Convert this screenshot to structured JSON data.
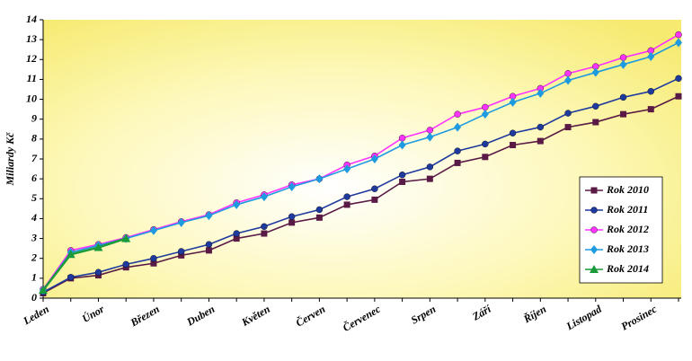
{
  "chart_data": {
    "type": "line",
    "y_label": "Miliardy Kč",
    "categories": [
      "Leden",
      null,
      "Únor",
      null,
      "Březen",
      null,
      "Duben",
      null,
      "Květen",
      null,
      "Červen",
      null,
      "Červenec",
      null,
      "Srpen",
      null,
      "Září",
      null,
      "Říjen",
      null,
      "Listopad",
      null,
      "Prosinec",
      null
    ],
    "series": [
      {
        "name": "Rok 2010",
        "color": "#5a1a46",
        "marker": "square",
        "values": [
          0.25,
          1.0,
          1.15,
          1.55,
          1.75,
          2.15,
          2.4,
          3.0,
          3.25,
          3.8,
          4.05,
          4.7,
          4.95,
          5.85,
          6.0,
          6.8,
          7.1,
          7.7,
          7.9,
          8.6,
          8.85,
          9.25,
          9.5,
          10.15
        ]
      },
      {
        "name": "Rok 2011",
        "color": "#1f3a9f",
        "marker": "circle",
        "values": [
          0.3,
          1.05,
          1.3,
          1.7,
          2.0,
          2.35,
          2.7,
          3.25,
          3.6,
          4.1,
          4.45,
          5.1,
          5.5,
          6.2,
          6.6,
          7.4,
          7.75,
          8.3,
          8.6,
          9.3,
          9.65,
          10.1,
          10.4,
          11.05
        ]
      },
      {
        "name": "Rok 2012",
        "color": "#ff33ff",
        "marker": "circle",
        "values": [
          0.45,
          2.4,
          2.7,
          3.05,
          3.45,
          3.85,
          4.2,
          4.8,
          5.2,
          5.7,
          6.0,
          6.7,
          7.15,
          8.05,
          8.45,
          9.25,
          9.6,
          10.15,
          10.55,
          11.3,
          11.65,
          12.1,
          12.45,
          13.25
        ]
      },
      {
        "name": "Rok 2013",
        "color": "#1e9be0",
        "marker": "diamond",
        "values": [
          0.4,
          2.3,
          2.65,
          3.0,
          3.4,
          3.8,
          4.15,
          4.7,
          5.1,
          5.6,
          6.0,
          6.5,
          7.0,
          7.7,
          8.1,
          8.6,
          9.25,
          9.85,
          10.3,
          10.95,
          11.35,
          11.75,
          12.15,
          12.85
        ]
      },
      {
        "name": "Rok 2014",
        "color": "#1a9a3a",
        "marker": "triangle",
        "values": [
          0.4,
          2.2,
          2.55,
          3.0,
          null,
          null,
          null,
          null,
          null,
          null,
          null,
          null,
          null,
          null,
          null,
          null,
          null,
          null,
          null,
          null,
          null,
          null,
          null,
          null
        ]
      }
    ],
    "ylim": [
      0,
      14
    ],
    "yticks": [
      0,
      1,
      2,
      3,
      4,
      5,
      6,
      7,
      8,
      9,
      10,
      11,
      12,
      13,
      14
    ],
    "grid": false,
    "legend": "lower right"
  }
}
